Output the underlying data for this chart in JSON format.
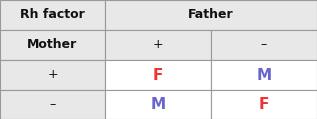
{
  "title_left": "Rh factor",
  "title_right": "Father",
  "col_headers": [
    "+",
    "–"
  ],
  "row_headers": [
    "Mother",
    "+",
    "–"
  ],
  "cells": [
    [
      "F",
      "M"
    ],
    [
      "M",
      "F"
    ]
  ],
  "cell_colors": [
    [
      "#ee3333",
      "#6666cc"
    ],
    [
      "#6666cc",
      "#ee3333"
    ]
  ],
  "header_bg": "#e8e8e8",
  "data_bg": "#ffffff",
  "border_color": "#999999",
  "text_color": "#111111"
}
